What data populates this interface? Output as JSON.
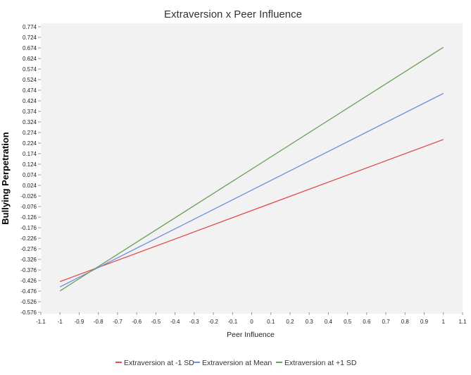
{
  "chart_data": {
    "type": "line",
    "title": "Extraversion x Peer Influence",
    "xlabel": "Peer Influence",
    "ylabel": "Bullying Perpetration",
    "xlim": [
      -1.1,
      1.1
    ],
    "ylim": [
      -0.576,
      0.774
    ],
    "x_ticks": [
      "-1.1",
      "-1",
      "-0.9",
      "-0.8",
      "-0.7",
      "-0.6",
      "-0.5",
      "-0.4",
      "-0.3",
      "-0.2",
      "-0.1",
      "0",
      "0.1",
      "0.2",
      "0.3",
      "0.4",
      "0.5",
      "0.6",
      "0.7",
      "0.8",
      "0.9",
      "1",
      "1.1"
    ],
    "y_ticks": [
      "0.774",
      "0.724",
      "0.674",
      "0.624",
      "0.574",
      "0.524",
      "0.474",
      "0.424",
      "0.374",
      "0.324",
      "0.274",
      "0.224",
      "0.174",
      "0.124",
      "0.074",
      "0.024",
      "-0.026",
      "-0.076",
      "-0.126",
      "-0.176",
      "-0.226",
      "-0.276",
      "-0.326",
      "-0.376",
      "-0.426",
      "-0.476",
      "-0.526",
      "-0.576"
    ],
    "grid": false,
    "legend_position": "bottom",
    "series": [
      {
        "name": "Extraversion at -1 SD",
        "color": "#e0504f",
        "x": [
          -1,
          1
        ],
        "y": [
          -0.431,
          0.241
        ]
      },
      {
        "name": "Extraversion at Mean",
        "color": "#6f8ee0",
        "x": [
          -1,
          1
        ],
        "y": [
          -0.456,
          0.459
        ]
      },
      {
        "name": "Extraversion at +1 SD",
        "color": "#6a9e5b",
        "x": [
          -1,
          1
        ],
        "y": [
          -0.475,
          0.677
        ]
      }
    ]
  }
}
